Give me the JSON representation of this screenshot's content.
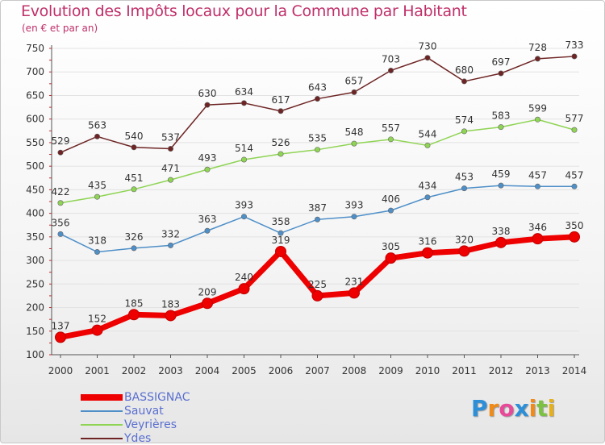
{
  "header": {
    "title": "Evolution des Impôts locaux pour la Commune par Habitant",
    "subtitle": "(en € et par an)"
  },
  "logo": {
    "text": "Proxiti"
  },
  "colors": {
    "title": "#c0306a",
    "legend_text": "#5a6fd0",
    "axis_text": "#333333"
  },
  "chart_data": {
    "type": "line",
    "title": "Evolution des Impôts locaux pour la Commune par Habitant",
    "subtitle": "(en € et par an)",
    "x": [
      "2000",
      "2001",
      "2002",
      "2003",
      "2004",
      "2005",
      "2006",
      "2007",
      "2008",
      "2009",
      "2010",
      "2011",
      "2012",
      "2013",
      "2014"
    ],
    "ylim": [
      100,
      750
    ],
    "yticks": [
      100,
      150,
      200,
      250,
      300,
      350,
      400,
      450,
      500,
      550,
      600,
      650,
      700,
      750
    ],
    "grid": "horizontal",
    "legend_position": "bottom-left",
    "series": [
      {
        "name": "BASSIGNAC",
        "color": "#ee0000",
        "values": [
          137,
          152,
          185,
          183,
          209,
          240,
          319,
          225,
          231,
          305,
          316,
          320,
          338,
          346,
          350
        ]
      },
      {
        "name": "Sauvat",
        "color": "#4e8fc8",
        "values": [
          356,
          318,
          326,
          332,
          363,
          393,
          358,
          387,
          393,
          406,
          434,
          453,
          459,
          457,
          457
        ]
      },
      {
        "name": "Veyrières",
        "color": "#8fd454",
        "values": [
          422,
          435,
          451,
          471,
          493,
          514,
          526,
          535,
          548,
          557,
          544,
          574,
          583,
          599,
          577
        ]
      },
      {
        "name": "Ydes",
        "color": "#6e2424",
        "values": [
          529,
          563,
          540,
          537,
          630,
          634,
          617,
          643,
          657,
          703,
          730,
          680,
          697,
          728,
          733
        ]
      }
    ]
  }
}
